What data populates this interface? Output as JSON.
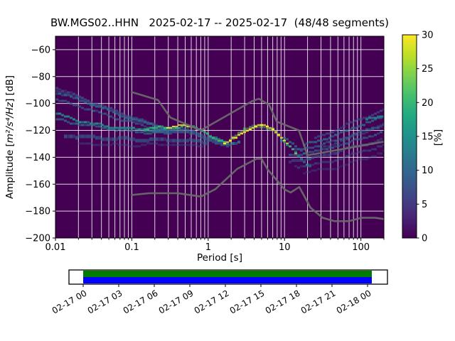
{
  "chart_data": {
    "type": "heatmap",
    "title": "BW.MGS02..HHN   2025-02-17 -- 2025-02-17  (48/48 segments)",
    "station": "BW.MGS02..HHN",
    "date_range": "2025-02-17 -- 2025-02-17",
    "segments": "48/48 segments",
    "xlabel": "Period [s]",
    "ylabel": "Amplitude [m²/s⁴/Hz] [dB]",
    "ylabel_parts": {
      "prefix": "Amplitude [",
      "math": "m²/s⁴/Hz",
      "suffix": "] [dB]"
    },
    "xlim": [
      0.01,
      200
    ],
    "ylim": [
      -200,
      -50
    ],
    "x_scale": "log",
    "grid": true,
    "background": "#440154",
    "grid_color": "rgba(255,255,255,0.82)",
    "x_ticks": [
      {
        "v": 0.01,
        "label": "0.01"
      },
      {
        "v": 0.1,
        "label": "0.1"
      },
      {
        "v": 1,
        "label": "1"
      },
      {
        "v": 10,
        "label": "10"
      },
      {
        "v": 100,
        "label": "100"
      }
    ],
    "y_ticks": [
      {
        "v": -60,
        "label": "−60"
      },
      {
        "v": -80,
        "label": "−80"
      },
      {
        "v": -100,
        "label": "−100"
      },
      {
        "v": -120,
        "label": "−120"
      },
      {
        "v": -140,
        "label": "−140"
      },
      {
        "v": -160,
        "label": "−160"
      },
      {
        "v": -180,
        "label": "−180"
      },
      {
        "v": -200,
        "label": "−200"
      }
    ],
    "colorbar": {
      "label": "[%]",
      "min": 0,
      "max": 30,
      "ticks": [
        0,
        5,
        10,
        15,
        20,
        25,
        30
      ],
      "colormap": "viridis",
      "stops": [
        "#440154",
        "#482475",
        "#414487",
        "#355f8d",
        "#2a788e",
        "#21918c",
        "#22a884",
        "#44bf70",
        "#7ad151",
        "#bddf26",
        "#fde725"
      ]
    },
    "noise_models": {
      "name": "Peterson NLNM/NHNM reference curves",
      "color": "#6b6b6b",
      "width": 2.6,
      "nhnm": [
        [
          0.1,
          -91.5
        ],
        [
          0.22,
          -97.4
        ],
        [
          0.32,
          -110.5
        ],
        [
          0.8,
          -120.0
        ],
        [
          3.8,
          -98.1
        ],
        [
          4.6,
          -96.5
        ],
        [
          6.3,
          -101.0
        ],
        [
          7.9,
          -113.5
        ],
        [
          15.4,
          -120.0
        ],
        [
          20.0,
          -138.5
        ],
        [
          200,
          -128.4
        ]
      ],
      "nlnm": [
        [
          0.1,
          -168.0
        ],
        [
          0.17,
          -166.7
        ],
        [
          0.4,
          -166.7
        ],
        [
          0.8,
          -169.2
        ],
        [
          1.24,
          -163.7
        ],
        [
          2.4,
          -148.6
        ],
        [
          4.3,
          -141.1
        ],
        [
          5.0,
          -141.1
        ],
        [
          6.0,
          -149.0
        ],
        [
          10.0,
          -163.8
        ],
        [
          12.0,
          -166.2
        ],
        [
          15.6,
          -162.1
        ],
        [
          21.9,
          -177.5
        ],
        [
          31.6,
          -185.0
        ],
        [
          45.0,
          -187.5
        ],
        [
          70.0,
          -187.5
        ],
        [
          101.0,
          -185.0
        ],
        [
          154.0,
          -185.0
        ],
        [
          200.0,
          -185.9
        ]
      ]
    },
    "psd_bands": [
      {
        "c": "#3b528b",
        "h": 4,
        "o": 0.55,
        "pts": [
          [
            0.01,
            -90
          ],
          [
            0.022,
            -97
          ],
          [
            0.055,
            -106
          ],
          [
            0.13,
            -114
          ],
          [
            0.3,
            -120
          ]
        ]
      },
      {
        "c": "#3b528b",
        "h": 3,
        "o": 0.75,
        "pts": [
          [
            0.01,
            -88
          ],
          [
            0.02,
            -95
          ],
          [
            0.05,
            -104
          ],
          [
            0.12,
            -112
          ],
          [
            0.3,
            -119
          ]
        ]
      },
      {
        "c": "#2c728e",
        "h": 3,
        "o": 0.8,
        "pts": [
          [
            0.01,
            -92
          ],
          [
            0.03,
            -101
          ],
          [
            0.07,
            -109
          ],
          [
            0.16,
            -115
          ],
          [
            0.32,
            -119.5
          ]
        ]
      },
      {
        "c": "#355f8d",
        "h": 3,
        "o": 0.8,
        "pts": [
          [
            0.01,
            -97
          ],
          [
            0.025,
            -104
          ],
          [
            0.06,
            -111
          ],
          [
            0.15,
            -117
          ],
          [
            0.35,
            -120
          ]
        ]
      },
      {
        "c": "#21918c",
        "h": 3,
        "o": 0.95,
        "pts": [
          [
            0.01,
            -108
          ],
          [
            0.02,
            -113
          ],
          [
            0.05,
            -117.5
          ],
          [
            0.12,
            -119.5
          ],
          [
            0.28,
            -120
          ]
        ]
      },
      {
        "c": "#2e6d8e",
        "h": 3,
        "o": 0.85,
        "pts": [
          [
            0.01,
            -112
          ],
          [
            0.03,
            -117
          ],
          [
            0.1,
            -121
          ],
          [
            0.3,
            -122
          ]
        ]
      },
      {
        "c": "#31688e",
        "h": 5,
        "o": 0.7,
        "pts": [
          [
            0.014,
            -124
          ],
          [
            0.05,
            -126
          ],
          [
            0.2,
            -127
          ],
          [
            0.6,
            -127.5
          ],
          [
            1.1,
            -130
          ]
        ]
      },
      {
        "c": "#3b528b",
        "h": 3,
        "o": 0.5,
        "pts": [
          [
            0.02,
            -130
          ],
          [
            0.08,
            -131
          ],
          [
            0.3,
            -130.5
          ],
          [
            0.8,
            -131.5
          ]
        ]
      },
      {
        "c": "#31688e",
        "h": 7,
        "o": 0.8,
        "pts": [
          [
            0.2,
            -121
          ],
          [
            0.4,
            -120
          ],
          [
            0.7,
            -122
          ],
          [
            1.0,
            -126
          ],
          [
            1.4,
            -129.5
          ],
          [
            2.0,
            -131.5
          ]
        ]
      },
      {
        "c": "#2a788e",
        "h": 4,
        "o": 0.85,
        "pts": [
          [
            1.1,
            -124
          ],
          [
            1.5,
            -128
          ],
          [
            2.0,
            -130.5
          ],
          [
            2.6,
            -128
          ]
        ]
      },
      {
        "c": "#35b779",
        "h": 3,
        "o": 0.95,
        "pts": [
          [
            0.15,
            -119
          ],
          [
            0.3,
            -117.5
          ],
          [
            0.5,
            -117
          ],
          [
            0.7,
            -118.5
          ],
          [
            0.9,
            -121
          ],
          [
            1.15,
            -124.5
          ],
          [
            1.45,
            -128
          ],
          [
            1.8,
            -130.5
          ]
        ]
      },
      {
        "c": "#fde725",
        "h": 2,
        "o": 0.9,
        "pts": [
          [
            0.3,
            -117.3
          ],
          [
            0.45,
            -116.8
          ],
          [
            0.62,
            -117.4
          ]
        ]
      },
      {
        "c": "#5ec962",
        "h": 5,
        "o": 0.6,
        "pts": [
          [
            2.0,
            -127
          ],
          [
            3.0,
            -120.5
          ],
          [
            4.2,
            -116.8
          ],
          [
            5.2,
            -116.2
          ],
          [
            6.2,
            -117.8
          ],
          [
            7.4,
            -120.5
          ],
          [
            8.6,
            -123.5
          ]
        ]
      },
      {
        "c": "#fde725",
        "h": 2.5,
        "o": 1,
        "pts": [
          [
            1.6,
            -130.5
          ],
          [
            2.2,
            -125.5
          ],
          [
            3.0,
            -120.5
          ],
          [
            4.0,
            -117
          ],
          [
            5.0,
            -116.2
          ],
          [
            6.0,
            -117.6
          ],
          [
            7.0,
            -119.8
          ],
          [
            8.0,
            -122.6
          ],
          [
            9.5,
            -126.5
          ],
          [
            11,
            -130.5
          ],
          [
            12.5,
            -134.5
          ],
          [
            14,
            -138.5
          ]
        ]
      },
      {
        "c": "#21918c",
        "h": 3,
        "o": 0.9,
        "pts": [
          [
            9,
            -127.5
          ],
          [
            11,
            -131.5
          ],
          [
            13.5,
            -136
          ],
          [
            16,
            -140.5
          ],
          [
            19,
            -144.5
          ],
          [
            23,
            -147.5
          ]
        ]
      },
      {
        "c": "#2a788e",
        "h": 3,
        "o": 0.8,
        "pts": [
          [
            10,
            -125
          ],
          [
            14,
            -131
          ],
          [
            18,
            -137
          ],
          [
            22,
            -142
          ]
        ]
      },
      {
        "c": "#3b528b",
        "h": 3,
        "o": 0.8,
        "pts": [
          [
            25,
            -126
          ],
          [
            60,
            -116.5
          ],
          [
            120,
            -109.5
          ],
          [
            200,
            -104.5
          ]
        ]
      },
      {
        "c": "#2c728e",
        "h": 3,
        "o": 0.85,
        "pts": [
          [
            18,
            -131
          ],
          [
            50,
            -123
          ],
          [
            110,
            -115
          ],
          [
            200,
            -110
          ]
        ]
      },
      {
        "c": "#21918c",
        "h": 3,
        "o": 0.9,
        "pts": [
          [
            120,
            -112.5
          ],
          [
            160,
            -110
          ],
          [
            200,
            -108
          ]
        ]
      },
      {
        "c": "#355f8d",
        "h": 3,
        "o": 0.85,
        "pts": [
          [
            14,
            -135
          ],
          [
            40,
            -129
          ],
          [
            90,
            -122
          ],
          [
            200,
            -116
          ]
        ]
      },
      {
        "c": "#31688e",
        "h": 3,
        "o": 0.8,
        "pts": [
          [
            12,
            -139
          ],
          [
            30,
            -135
          ],
          [
            70,
            -129
          ],
          [
            200,
            -121
          ]
        ]
      },
      {
        "c": "#3b528b",
        "h": 4,
        "o": 0.65,
        "pts": [
          [
            12,
            -143
          ],
          [
            28,
            -140
          ],
          [
            65,
            -134
          ],
          [
            200,
            -127
          ]
        ]
      },
      {
        "c": "#365c8d",
        "h": 3,
        "o": 0.6,
        "pts": [
          [
            14,
            -147
          ],
          [
            35,
            -144
          ],
          [
            90,
            -137
          ],
          [
            200,
            -131
          ]
        ]
      },
      {
        "c": "#3b528b",
        "h": 3,
        "o": 0.45,
        "pts": [
          [
            18,
            -151
          ],
          [
            45,
            -148
          ],
          [
            110,
            -141
          ],
          [
            200,
            -136
          ]
        ]
      },
      {
        "c": "#2c728e",
        "h": 3,
        "o": 0.5,
        "pts": [
          [
            30,
            -133
          ],
          [
            70,
            -126
          ],
          [
            140,
            -119
          ],
          [
            200,
            -115
          ]
        ]
      }
    ]
  },
  "timeline": {
    "labels": [
      "02-17 00",
      "02-17 03",
      "02-17 06",
      "02-17 09",
      "02-17 12",
      "02-17 15",
      "02-17 18",
      "02-17 21",
      "02-18 00"
    ],
    "coverage_color": "#007c00",
    "data_color": "#0000ff",
    "box_color": "#ffffff",
    "border_color": "#000000"
  }
}
